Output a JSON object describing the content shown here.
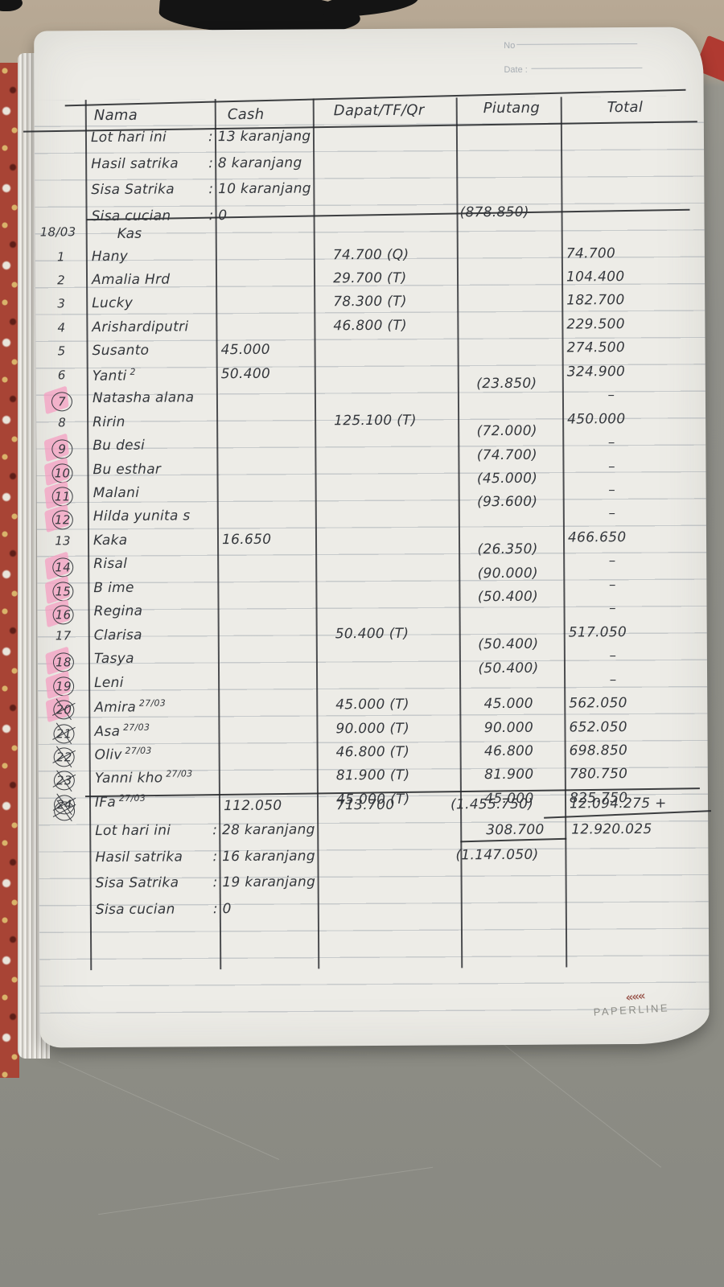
{
  "scene": {
    "brand": "PAPERLINE",
    "logo_icon": "chevrons-left",
    "printed": {
      "no_label": "No",
      "date_label": "Date :"
    },
    "colors": {
      "table_surface": "#90908a",
      "table_top_band": "#b3a591",
      "page": "#edece7",
      "pen": "#34373c",
      "highlight_pink": "#f59cc0",
      "cover_red": "#a84435"
    }
  },
  "ledger": {
    "date_margin": "18/03",
    "kas_label": "Kas",
    "opening_piutang": "(878.850)",
    "headers": {
      "nama": "Nama",
      "cash": "Cash",
      "dapat": "Dapat/TF/Qr",
      "piutang": "Piutang",
      "total": "Total"
    },
    "top_notes": [
      {
        "label": "Lot hari ini",
        "value": ":  13  karanjang"
      },
      {
        "label": "Hasil satrika",
        "value": ":  8  karanjang"
      },
      {
        "label": "Sisa Satrika",
        "value": ":  10  karanjang"
      },
      {
        "label": "Sisa cucian",
        "value": ":  0"
      }
    ],
    "rows": [
      {
        "no": "1",
        "name": "Hany",
        "note": "",
        "cash": "",
        "dapat": "74.700  (Q)",
        "piutang": "",
        "total": "74.700",
        "circled": false,
        "pink": false,
        "crossed": false
      },
      {
        "no": "2",
        "name": "Amalia  Hrd",
        "note": "",
        "cash": "",
        "dapat": "29.700  (T)",
        "piutang": "",
        "total": "104.400",
        "circled": false,
        "pink": false,
        "crossed": false
      },
      {
        "no": "3",
        "name": "Lucky",
        "note": "",
        "cash": "",
        "dapat": "78.300  (T)",
        "piutang": "",
        "total": "182.700",
        "circled": false,
        "pink": false,
        "crossed": false
      },
      {
        "no": "4",
        "name": "Arishardiputri",
        "note": "",
        "cash": "",
        "dapat": "46.800  (T)",
        "piutang": "",
        "total": "229.500",
        "circled": false,
        "pink": false,
        "crossed": false
      },
      {
        "no": "5",
        "name": "Susanto",
        "note": "",
        "cash": "45.000",
        "dapat": "",
        "piutang": "",
        "total": "274.500",
        "circled": false,
        "pink": false,
        "crossed": false
      },
      {
        "no": "6",
        "name": "Yanti",
        "note": "2",
        "cash": "50.400",
        "dapat": "",
        "piutang": "",
        "total": "324.900",
        "circled": false,
        "pink": false,
        "crossed": false
      },
      {
        "no": "7",
        "name": "Natasha alana",
        "note": "",
        "cash": "",
        "dapat": "",
        "piutang": "(23.850)",
        "total": "–",
        "circled": true,
        "pink": true,
        "crossed": false
      },
      {
        "no": "8",
        "name": "Ririn",
        "note": "",
        "cash": "",
        "dapat": "125.100  (T)",
        "piutang": "",
        "total": "450.000",
        "circled": false,
        "pink": false,
        "crossed": false
      },
      {
        "no": "9",
        "name": "Bu desi",
        "note": "",
        "cash": "",
        "dapat": "",
        "piutang": "(72.000)",
        "total": "–",
        "circled": true,
        "pink": true,
        "crossed": false
      },
      {
        "no": "10",
        "name": "Bu esthar",
        "note": "",
        "cash": "",
        "dapat": "",
        "piutang": "(74.700)",
        "total": "–",
        "circled": true,
        "pink": true,
        "crossed": false
      },
      {
        "no": "11",
        "name": "Malani",
        "note": "",
        "cash": "",
        "dapat": "",
        "piutang": "(45.000)",
        "total": "–",
        "circled": true,
        "pink": true,
        "crossed": false
      },
      {
        "no": "12",
        "name": "Hilda yunita s",
        "note": "",
        "cash": "",
        "dapat": "",
        "piutang": "(93.600)",
        "total": "–",
        "circled": true,
        "pink": true,
        "crossed": false
      },
      {
        "no": "13",
        "name": "Kaka",
        "note": "",
        "cash": "16.650",
        "dapat": "",
        "piutang": "",
        "total": "466.650",
        "circled": false,
        "pink": false,
        "crossed": false
      },
      {
        "no": "14",
        "name": "Risal",
        "note": "",
        "cash": "",
        "dapat": "",
        "piutang": "(26.350)",
        "total": "–",
        "circled": true,
        "pink": true,
        "crossed": false
      },
      {
        "no": "15",
        "name": "B ime",
        "note": "",
        "cash": "",
        "dapat": "",
        "piutang": "(90.000)",
        "total": "–",
        "circled": true,
        "pink": true,
        "crossed": false
      },
      {
        "no": "16",
        "name": "Regina",
        "note": "",
        "cash": "",
        "dapat": "",
        "piutang": "(50.400)",
        "total": "–",
        "circled": true,
        "pink": true,
        "crossed": false
      },
      {
        "no": "17",
        "name": "Clarisa",
        "note": "",
        "cash": "",
        "dapat": "50.400  (T)",
        "piutang": "",
        "total": "517.050",
        "circled": false,
        "pink": false,
        "crossed": false
      },
      {
        "no": "18",
        "name": "Tasya",
        "note": "",
        "cash": "",
        "dapat": "",
        "piutang": "(50.400)",
        "total": "–",
        "circled": true,
        "pink": true,
        "crossed": false
      },
      {
        "no": "19",
        "name": "Leni",
        "note": "",
        "cash": "",
        "dapat": "",
        "piutang": "(50.400)",
        "total": "–",
        "circled": true,
        "pink": true,
        "crossed": false
      },
      {
        "no": "20",
        "name": "Amira",
        "note": "27/03",
        "cash": "",
        "dapat": "45.000  (T)",
        "piutang": "45.000",
        "total": "562.050",
        "circled": true,
        "pink": true,
        "crossed": true
      },
      {
        "no": "21",
        "name": "Asa",
        "note": "27/03",
        "cash": "",
        "dapat": "90.000  (T)",
        "piutang": "90.000",
        "total": "652.050",
        "circled": true,
        "pink": false,
        "crossed": true
      },
      {
        "no": "22",
        "name": "Oliv",
        "note": "27/03",
        "cash": "",
        "dapat": "46.800  (T)",
        "piutang": "46.800",
        "total": "698.850",
        "circled": true,
        "pink": false,
        "crossed": true
      },
      {
        "no": "23",
        "name": "Yanni kho",
        "note": "27/03",
        "cash": "",
        "dapat": "81.900  (T)",
        "piutang": "81.900",
        "total": "780.750",
        "circled": true,
        "pink": false,
        "crossed": true
      },
      {
        "no": "24",
        "name": "IFa",
        "note": "27/03",
        "cash": "",
        "dapat": "45.000  (T)",
        "piutang": "45.000",
        "total": "825.750",
        "circled": true,
        "pink": false,
        "crossed": true
      }
    ],
    "totals_row": {
      "cash": "112.050",
      "dapat": "713.700",
      "piutang": "(1.455.750)",
      "total": "12.094.275 +"
    },
    "post_totals": {
      "piutang_payment": "308.700",
      "grand_total": "12.920.025",
      "piutang_net": "(1.147.050)"
    },
    "bottom_notes": [
      {
        "label": "Lot hari ini",
        "value": ":  28  karanjang"
      },
      {
        "label": "Hasil satrika",
        "value": ":  16  karanjang"
      },
      {
        "label": "Sisa Satrika",
        "value": ":  19  karanjang"
      },
      {
        "label": "Sisa cucian",
        "value": ":  0"
      }
    ]
  }
}
